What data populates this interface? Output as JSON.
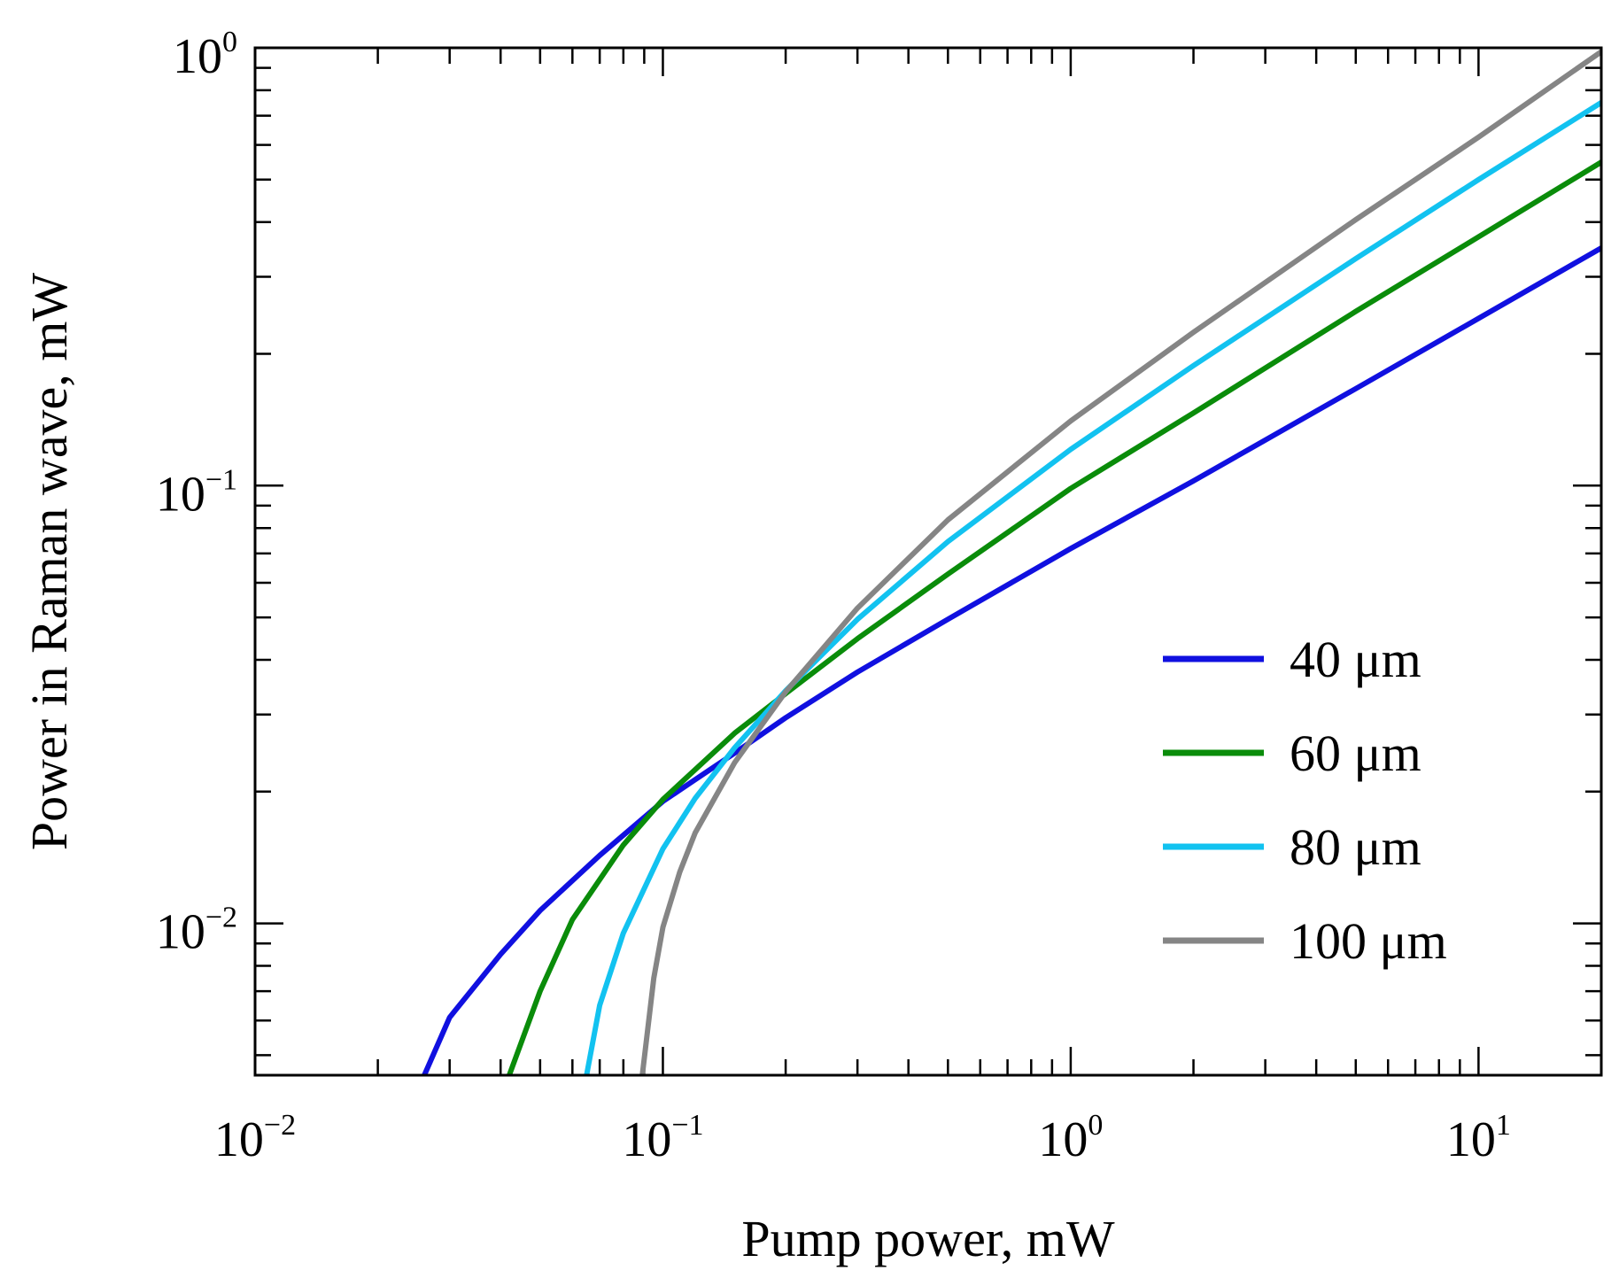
{
  "chart_data": {
    "type": "line",
    "title": "",
    "xlabel": "Pump power, mW",
    "ylabel": "Power in Raman wave, mW",
    "x_scale": "log",
    "y_scale": "log",
    "xlim": [
      0.01,
      20
    ],
    "ylim": [
      0.0045,
      1.0
    ],
    "grid": false,
    "x_ticks": [
      {
        "value": 0.01,
        "base": "10",
        "exp": "−2"
      },
      {
        "value": 0.1,
        "base": "10",
        "exp": "−1"
      },
      {
        "value": 1,
        "base": "10",
        "exp": "0"
      },
      {
        "value": 10,
        "base": "10",
        "exp": "1"
      }
    ],
    "y_ticks": [
      {
        "value": 0.01,
        "base": "10",
        "exp": "−2"
      },
      {
        "value": 0.1,
        "base": "10",
        "exp": "−1"
      },
      {
        "value": 1,
        "base": "10",
        "exp": "0"
      }
    ],
    "legend_position": "lower-right",
    "series": [
      {
        "name": "40 μm",
        "color": "#1010e0",
        "x": [
          0.026,
          0.03,
          0.04,
          0.05,
          0.07,
          0.1,
          0.15,
          0.2,
          0.3,
          0.5,
          1,
          2,
          5,
          10,
          20
        ],
        "y": [
          0.0045,
          0.0061,
          0.0085,
          0.0107,
          0.0143,
          0.019,
          0.0245,
          0.0295,
          0.0375,
          0.0495,
          0.0718,
          0.1025,
          0.1665,
          0.241,
          0.349
        ]
      },
      {
        "name": "60 μm",
        "color": "#0a8c0a",
        "x": [
          0.042,
          0.05,
          0.06,
          0.08,
          0.1,
          0.15,
          0.2,
          0.3,
          0.5,
          1,
          2,
          5,
          10,
          20
        ],
        "y": [
          0.0045,
          0.007,
          0.0102,
          0.0151,
          0.0192,
          0.0272,
          0.0335,
          0.0447,
          0.0628,
          0.0985,
          0.1465,
          0.25,
          0.37,
          0.548
        ]
      },
      {
        "name": "80 μm",
        "color": "#12c2f0",
        "x": [
          0.065,
          0.07,
          0.08,
          0.1,
          0.12,
          0.15,
          0.2,
          0.3,
          0.5,
          1,
          2,
          5,
          10,
          20
        ],
        "y": [
          0.0045,
          0.0065,
          0.0095,
          0.0148,
          0.0193,
          0.0252,
          0.034,
          0.0495,
          0.0745,
          0.121,
          0.188,
          0.33,
          0.5,
          0.75
        ]
      },
      {
        "name": "100 μm",
        "color": "#858585",
        "x": [
          0.089,
          0.095,
          0.1,
          0.11,
          0.12,
          0.15,
          0.2,
          0.3,
          0.5,
          1,
          2,
          5,
          10,
          20
        ],
        "y": [
          0.0045,
          0.0075,
          0.0098,
          0.0131,
          0.0161,
          0.0233,
          0.0338,
          0.0525,
          0.0835,
          0.1405,
          0.224,
          0.405,
          0.625,
          0.98
        ]
      }
    ]
  }
}
